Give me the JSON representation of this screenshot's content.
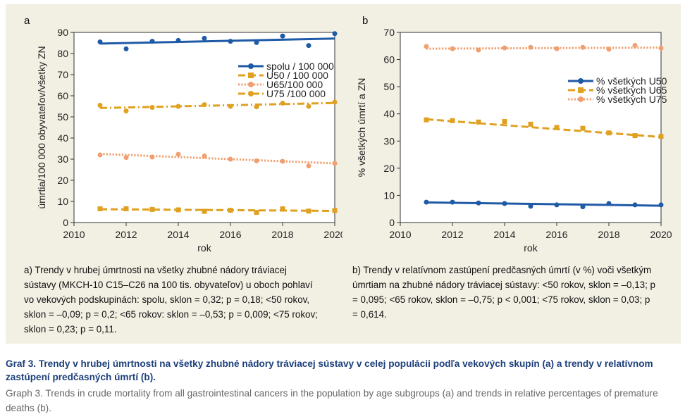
{
  "chart_data": [
    {
      "type": "line",
      "panel_label": "a",
      "xlabel": "rok",
      "ylabel": "úmrtia/100 000 obyvateľov/všetky ZN",
      "xlim": [
        2010,
        2020
      ],
      "ylim": [
        0,
        90
      ],
      "xticks": [
        2010,
        2012,
        2014,
        2016,
        2018,
        2020
      ],
      "yticks": [
        0,
        10,
        20,
        30,
        40,
        50,
        60,
        70,
        80,
        90
      ],
      "x": [
        2011,
        2012,
        2013,
        2014,
        2015,
        2016,
        2017,
        2018,
        2019,
        2020
      ],
      "legend_position": "top-right",
      "series": [
        {
          "name": "spolu / 100 000",
          "color": "#1f5aa6",
          "marker": "circle",
          "dash": "solid",
          "values": [
            85.5,
            82.2,
            85.8,
            86.2,
            87.2,
            85.8,
            85.2,
            88.3,
            83.8,
            89.4
          ],
          "trend": [
            84.7,
            87.1
          ]
        },
        {
          "name": "U50 / 100 000",
          "color": "#e0a020",
          "marker": "square",
          "dash": "long-dash",
          "values": [
            6.5,
            6.5,
            6.2,
            6.0,
            5.3,
            5.8,
            4.8,
            6.5,
            5.4,
            5.7
          ],
          "trend": [
            6.3,
            5.5
          ]
        },
        {
          "name": "U65/100 000",
          "color": "#f0a070",
          "marker": "circle",
          "dash": "dotted",
          "values": [
            32.0,
            30.8,
            31.0,
            32.3,
            31.5,
            30.0,
            29.2,
            29.0,
            26.8,
            28.0
          ],
          "trend": [
            32.5,
            28.0
          ]
        },
        {
          "name": "U75 /100 000",
          "color": "#e0a020",
          "marker": "circle",
          "dash": "dash-dot",
          "values": [
            55.5,
            52.8,
            54.5,
            55.0,
            55.8,
            55.0,
            54.8,
            56.5,
            55.0,
            57.0
          ],
          "trend": [
            54.2,
            56.6
          ]
        }
      ]
    },
    {
      "type": "line",
      "panel_label": "b",
      "xlabel": "rok",
      "ylabel": "% všetkých úmrtí a ZN",
      "xlim": [
        2010,
        2020
      ],
      "ylim": [
        0,
        70
      ],
      "xticks": [
        2010,
        2012,
        2014,
        2016,
        2018,
        2020
      ],
      "yticks": [
        0,
        10,
        20,
        30,
        40,
        50,
        60,
        70
      ],
      "x": [
        2011,
        2012,
        2013,
        2014,
        2015,
        2016,
        2017,
        2018,
        2019,
        2020
      ],
      "legend_position": "top-right",
      "series": [
        {
          "name": "% všetkých U50",
          "color": "#1f5aa6",
          "marker": "circle",
          "dash": "solid",
          "values": [
            7.5,
            7.5,
            7.2,
            7.0,
            6.0,
            6.5,
            5.8,
            7.0,
            6.5,
            6.5
          ],
          "trend": [
            7.4,
            6.2
          ]
        },
        {
          "name": "% všetkých U65",
          "color": "#e0a020",
          "marker": "square",
          "dash": "long-dash",
          "values": [
            37.8,
            37.5,
            37.0,
            37.2,
            36.2,
            35.0,
            34.7,
            33.0,
            32.0,
            31.7
          ],
          "trend": [
            38.0,
            31.5
          ]
        },
        {
          "name": "% všetkých U75",
          "color": "#f0a070",
          "marker": "circle",
          "dash": "dotted",
          "values": [
            64.8,
            64.0,
            63.5,
            64.3,
            64.5,
            64.0,
            64.5,
            63.8,
            65.2,
            64.2
          ],
          "trend": [
            64.0,
            64.4
          ]
        }
      ]
    }
  ],
  "captions": {
    "a": "a) Trendy v hrubej úmrtnosti na všetky zhubné nádory tráviacej sústavy (MKCH-10 C15–C26 na 100 tis. obyvateľov) u oboch pohlaví vo vekových podskupinách: spolu, sklon = 0,32; p = 0,18; <50 rokov, sklon = –0,09; p = 0,2; <65 rokov: sklon = –0,53; p = 0,009; <75 rokov; sklon = 0,23; p = 0,11.",
    "b": "b) Trendy v relatívnom zastúpení predčasných úmrtí (v %) voči všetkým úmrtiam na zhubné nádory tráviacej sústavy: <50 rokov, sklon = –0,13; p = 0,095; <65 rokov, sklon = –0,75; p < 0,001; <75 rokov, sklon = 0,03; p = 0,614."
  },
  "figure_title": "Graf 3. Trendy v hrubej úmrtnosti na všetky zhubné nádory tráviacej sústavy v celej populácii podľa vekových skupín (a) a trendy v relatívnom zastúpení predčasných úmrtí (b).",
  "figure_subtitle": "Graph 3. Trends in crude mortality from all gastrointestinal cancers in the population by age subgroups (a) and trends in relative percentages of premature deaths (b)."
}
